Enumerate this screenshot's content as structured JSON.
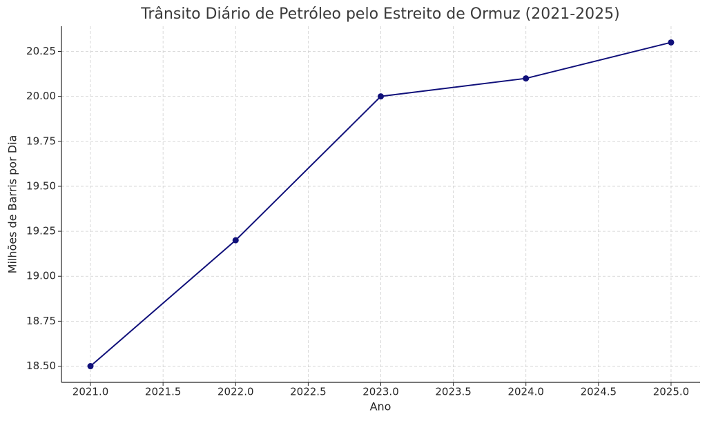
{
  "chart_data": {
    "type": "line",
    "title": "Trânsito Diário de Petróleo pelo Estreito de Ormuz (2021-2025)",
    "xlabel": "Ano",
    "ylabel": "Milhões de Barris por Dia",
    "x": [
      2021,
      2022,
      2023,
      2024,
      2025
    ],
    "series": [
      {
        "name": "Trânsito",
        "color": "#10107a",
        "values": [
          18.5,
          19.2,
          20.0,
          20.1,
          20.3
        ]
      }
    ],
    "xlim": [
      2020.8,
      2025.2
    ],
    "ylim": [
      18.41,
      20.39
    ],
    "xticks": [
      {
        "value": 2021,
        "label": "2021.0"
      },
      {
        "value": 2021.5,
        "label": "2021.5"
      },
      {
        "value": 2022,
        "label": "2022.0"
      },
      {
        "value": 2022.5,
        "label": "2022.5"
      },
      {
        "value": 2023,
        "label": "2023.0"
      },
      {
        "value": 2023.5,
        "label": "2023.5"
      },
      {
        "value": 2024,
        "label": "2024.0"
      },
      {
        "value": 2024.5,
        "label": "2024.5"
      },
      {
        "value": 2025,
        "label": "2025.0"
      }
    ],
    "yticks": [
      {
        "value": 18.5,
        "label": "18.50"
      },
      {
        "value": 18.75,
        "label": "18.75"
      },
      {
        "value": 19,
        "label": "19.00"
      },
      {
        "value": 19.25,
        "label": "19.25"
      },
      {
        "value": 19.5,
        "label": "19.50"
      },
      {
        "value": 19.75,
        "label": "19.75"
      },
      {
        "value": 20,
        "label": "20.00"
      },
      {
        "value": 20.25,
        "label": "20.25"
      }
    ],
    "grid": true
  }
}
